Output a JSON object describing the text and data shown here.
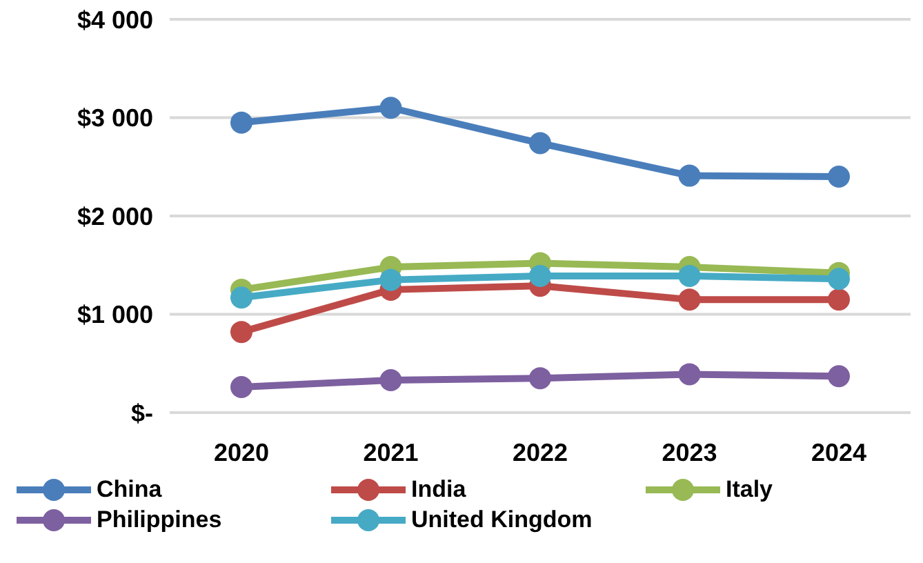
{
  "chart_data": {
    "type": "line",
    "categories": [
      "2020",
      "2021",
      "2022",
      "2023",
      "2024"
    ],
    "series": [
      {
        "name": "China",
        "color": "#4a7ebb",
        "values": [
          2950,
          3100,
          2740,
          2410,
          2400
        ]
      },
      {
        "name": "India",
        "color": "#be4b48",
        "values": [
          820,
          1250,
          1290,
          1150,
          1150
        ]
      },
      {
        "name": "Italy",
        "color": "#98b954",
        "values": [
          1250,
          1480,
          1520,
          1480,
          1420
        ]
      },
      {
        "name": "Philippines",
        "color": "#7d60a0",
        "values": [
          260,
          330,
          350,
          390,
          370
        ]
      },
      {
        "name": "United Kingdom",
        "color": "#46aac5",
        "values": [
          1170,
          1350,
          1390,
          1390,
          1360
        ]
      }
    ],
    "ylim": [
      0,
      4000
    ],
    "yticks": [
      {
        "value": 0,
        "label": "$-"
      },
      {
        "value": 1000,
        "label": "$1 000"
      },
      {
        "value": 2000,
        "label": "$2 000"
      },
      {
        "value": 3000,
        "label": "$3 000"
      },
      {
        "value": 4000,
        "label": "$4 000"
      }
    ],
    "grid": "y",
    "legend": "bottom",
    "marker": "circle",
    "line_style": "solid"
  }
}
